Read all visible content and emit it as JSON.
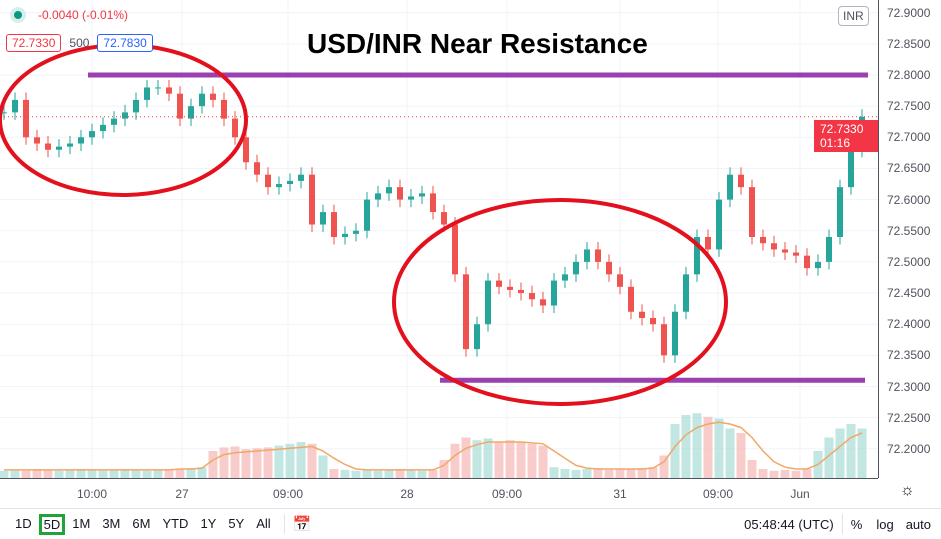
{
  "header": {
    "change": "-0.0040 (-0.01%)",
    "bid": "72.7330",
    "spread": "500",
    "ask": "72.7830",
    "currency": "INR",
    "title": "USD/INR Near Resistance"
  },
  "price_label": {
    "price": "72.7330",
    "countdown": "01:16"
  },
  "bottom": {
    "ranges": [
      "1D",
      "5D",
      "1M",
      "3M",
      "6M",
      "YTD",
      "1Y",
      "5Y",
      "All"
    ],
    "active": "5D",
    "time": "05:48:44 (UTC)",
    "pct": "%",
    "log": "log",
    "auto": "auto"
  },
  "colors": {
    "up": "#26a69a",
    "down": "#ef5350",
    "annotation_line": "#9c3fb0",
    "ellipse": "#e3101d",
    "volume_ma": "#f0a868",
    "last_price": "#f23645"
  },
  "chart_data": {
    "type": "candlestick",
    "title": "USD/INR Near Resistance",
    "x_ticks": [
      "10:00",
      "27",
      "09:00",
      "28",
      "09:00",
      "31",
      "09:00",
      "Jun"
    ],
    "y_ticks": [
      "72.9000",
      "72.8500",
      "72.8000",
      "72.7500",
      "72.7000",
      "72.6500",
      "72.6000",
      "72.5500",
      "72.5000",
      "72.4500",
      "72.4000",
      "72.3500",
      "72.3000",
      "72.2500",
      "72.2000"
    ],
    "ylim": [
      72.16,
      72.91
    ],
    "grid": true,
    "closes": [
      72.74,
      72.76,
      72.7,
      72.69,
      72.68,
      72.685,
      72.69,
      72.7,
      72.71,
      72.72,
      72.73,
      72.74,
      72.76,
      72.78,
      72.78,
      72.77,
      72.73,
      72.75,
      72.77,
      72.76,
      72.73,
      72.7,
      72.66,
      72.64,
      72.62,
      72.625,
      72.63,
      72.64,
      72.56,
      72.58,
      72.54,
      72.545,
      72.55,
      72.6,
      72.61,
      72.62,
      72.6,
      72.605,
      72.61,
      72.58,
      72.56,
      72.48,
      72.36,
      72.4,
      72.47,
      72.46,
      72.455,
      72.45,
      72.44,
      72.43,
      72.47,
      72.48,
      72.5,
      72.52,
      72.5,
      72.48,
      72.46,
      72.42,
      72.41,
      72.4,
      72.35,
      72.42,
      72.48,
      72.54,
      72.52,
      72.6,
      72.64,
      72.62,
      72.54,
      72.53,
      72.52,
      72.515,
      72.51,
      72.49,
      72.5,
      72.54,
      72.62,
      72.68,
      72.733
    ],
    "volume": [
      8,
      9,
      8,
      10,
      9,
      8,
      9,
      10,
      9,
      8,
      9,
      10,
      9,
      8,
      9,
      10,
      10,
      11,
      12,
      30,
      34,
      35,
      32,
      33,
      34,
      36,
      38,
      40,
      38,
      25,
      10,
      9,
      8,
      9,
      8,
      9,
      10,
      9,
      8,
      9,
      20,
      38,
      45,
      42,
      44,
      40,
      42,
      40,
      38,
      36,
      12,
      10,
      9,
      10,
      11,
      9,
      10,
      10,
      11,
      12,
      25,
      60,
      70,
      72,
      68,
      66,
      55,
      50,
      20,
      10,
      8,
      9,
      8,
      10,
      30,
      45,
      55,
      60,
      55
    ],
    "volume_ma": [
      9,
      9,
      9,
      9,
      9,
      9,
      9,
      9,
      9,
      9,
      9,
      9,
      9,
      9,
      9,
      9,
      10,
      10,
      11,
      20,
      26,
      28,
      29,
      30,
      31,
      32,
      33,
      34,
      35,
      30,
      22,
      15,
      10,
      9,
      9,
      9,
      9,
      9,
      9,
      9,
      14,
      25,
      33,
      37,
      40,
      40,
      40,
      40,
      39,
      38,
      30,
      22,
      14,
      11,
      10,
      10,
      10,
      10,
      10,
      11,
      18,
      35,
      48,
      56,
      60,
      62,
      60,
      56,
      45,
      30,
      18,
      12,
      10,
      10,
      15,
      25,
      35,
      45,
      50
    ],
    "annotations": {
      "resistance": 72.8,
      "support": 72.31,
      "last_price": 72.733
    }
  }
}
